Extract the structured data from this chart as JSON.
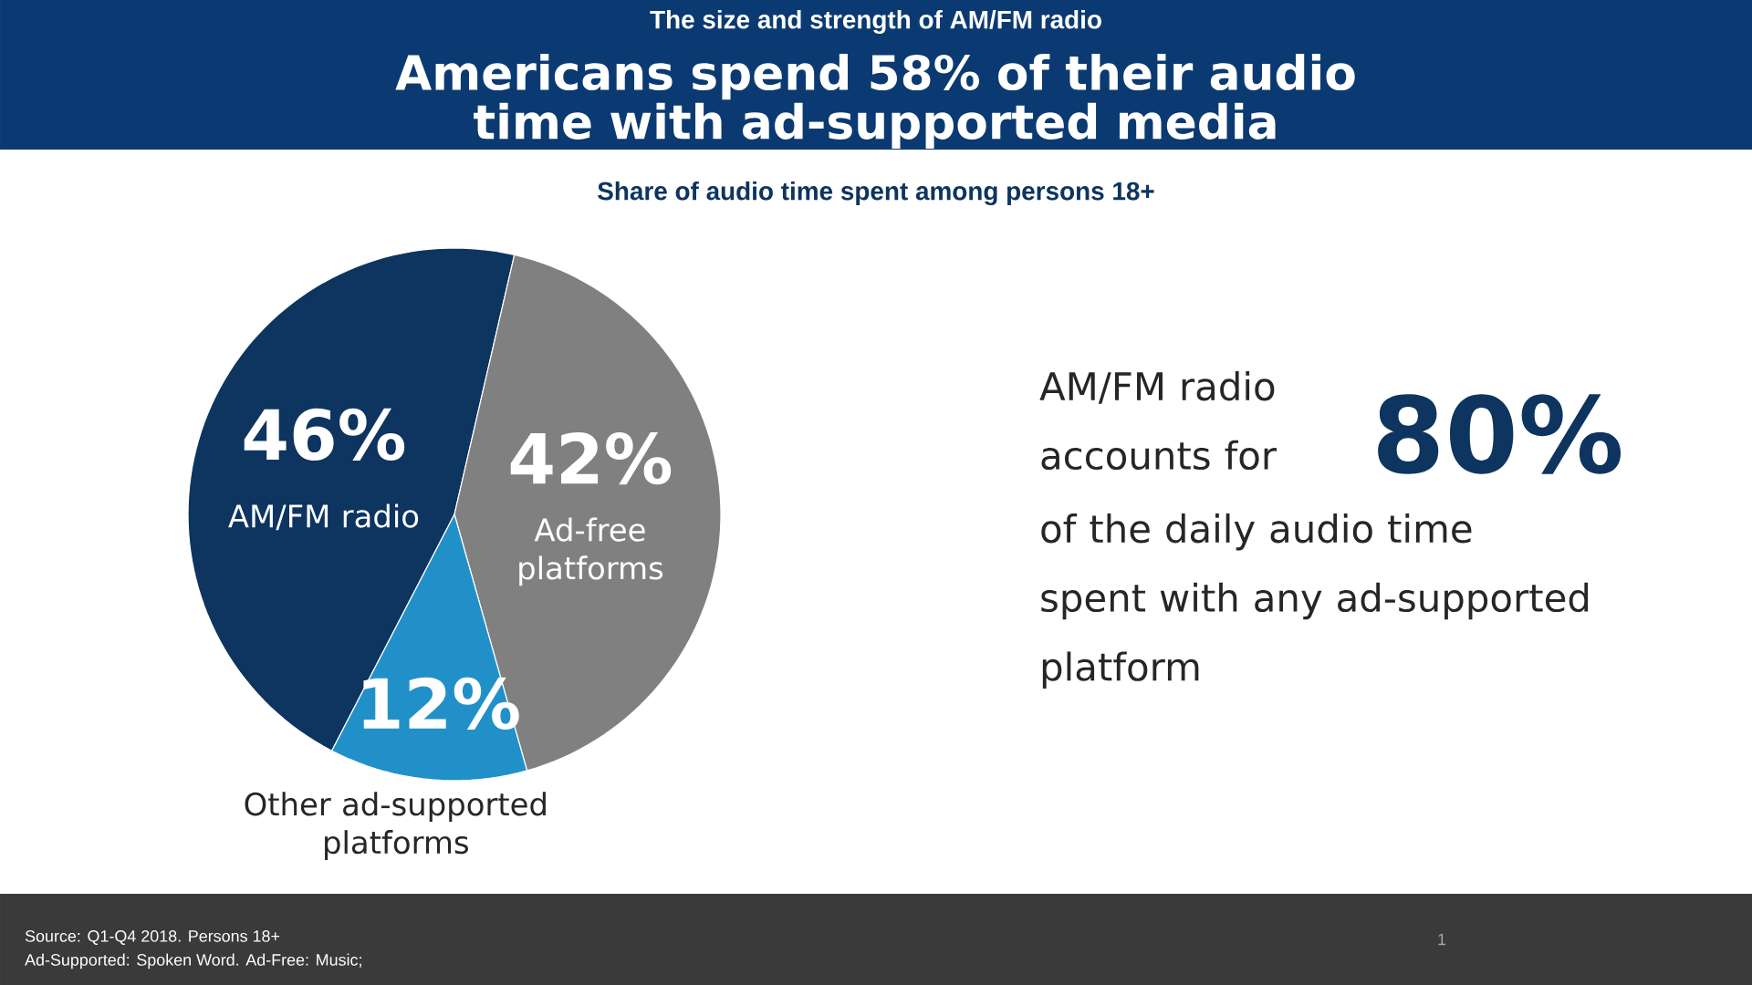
{
  "chart_data": {
    "type": "pie",
    "title": "Americans spend 58% of their audio time with ad-supported media",
    "subtitle": "Share of audio time spent among persons 18+",
    "categories": [
      "AM/FM radio",
      "Ad-free platforms",
      "Other ad-supported platforms"
    ],
    "values": [
      46,
      42,
      12
    ],
    "colors": [
      "#0e3460",
      "#808080",
      "#2290c8"
    ],
    "value_labels": [
      "46%",
      "42%",
      "12%"
    ],
    "annotations": [
      "The size and strength of AM/FM radio",
      "AM/FM radio accounts for",
      "80%",
      "of the daily audio time spent with any ad-supported platform",
      "Source: Q1-Q4 2018. Persons 18+",
      "Ad-Supported: Spoken Word. Ad-Free: Music;",
      "1"
    ]
  }
}
